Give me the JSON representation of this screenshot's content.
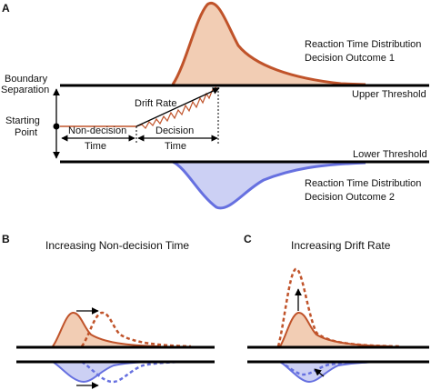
{
  "panel_a": {
    "letter": "A",
    "labels": {
      "boundary_line1": "Boundary",
      "boundary_line2": "Separation",
      "starting_line1": "Starting",
      "starting_line2": "Point",
      "drift_rate": "Drift Rate",
      "non_decision_line1": "Non-decision",
      "non_decision_line2": "Time",
      "decision_line1": "Decision",
      "decision_line2": "Time",
      "upper_threshold": "Upper Threshold",
      "lower_threshold": "Lower Threshold",
      "rt_upper_line1": "Reaction Time Distribution",
      "rt_upper_line2": "Decision Outcome 1",
      "rt_lower_line1": "Reaction Time Distribution",
      "rt_lower_line2": "Decision Outcome 2"
    }
  },
  "panel_b": {
    "letter": "B",
    "title": "Increasing Non-decision Time"
  },
  "panel_c": {
    "letter": "C",
    "title": "Increasing Drift Rate"
  },
  "colors": {
    "outcome1_stroke": "#c0532a",
    "outcome1_fill": "#f2cdb4",
    "outcome2_stroke": "#6670e0",
    "outcome2_fill": "#ccd0f4",
    "threshold": "#000000"
  }
}
